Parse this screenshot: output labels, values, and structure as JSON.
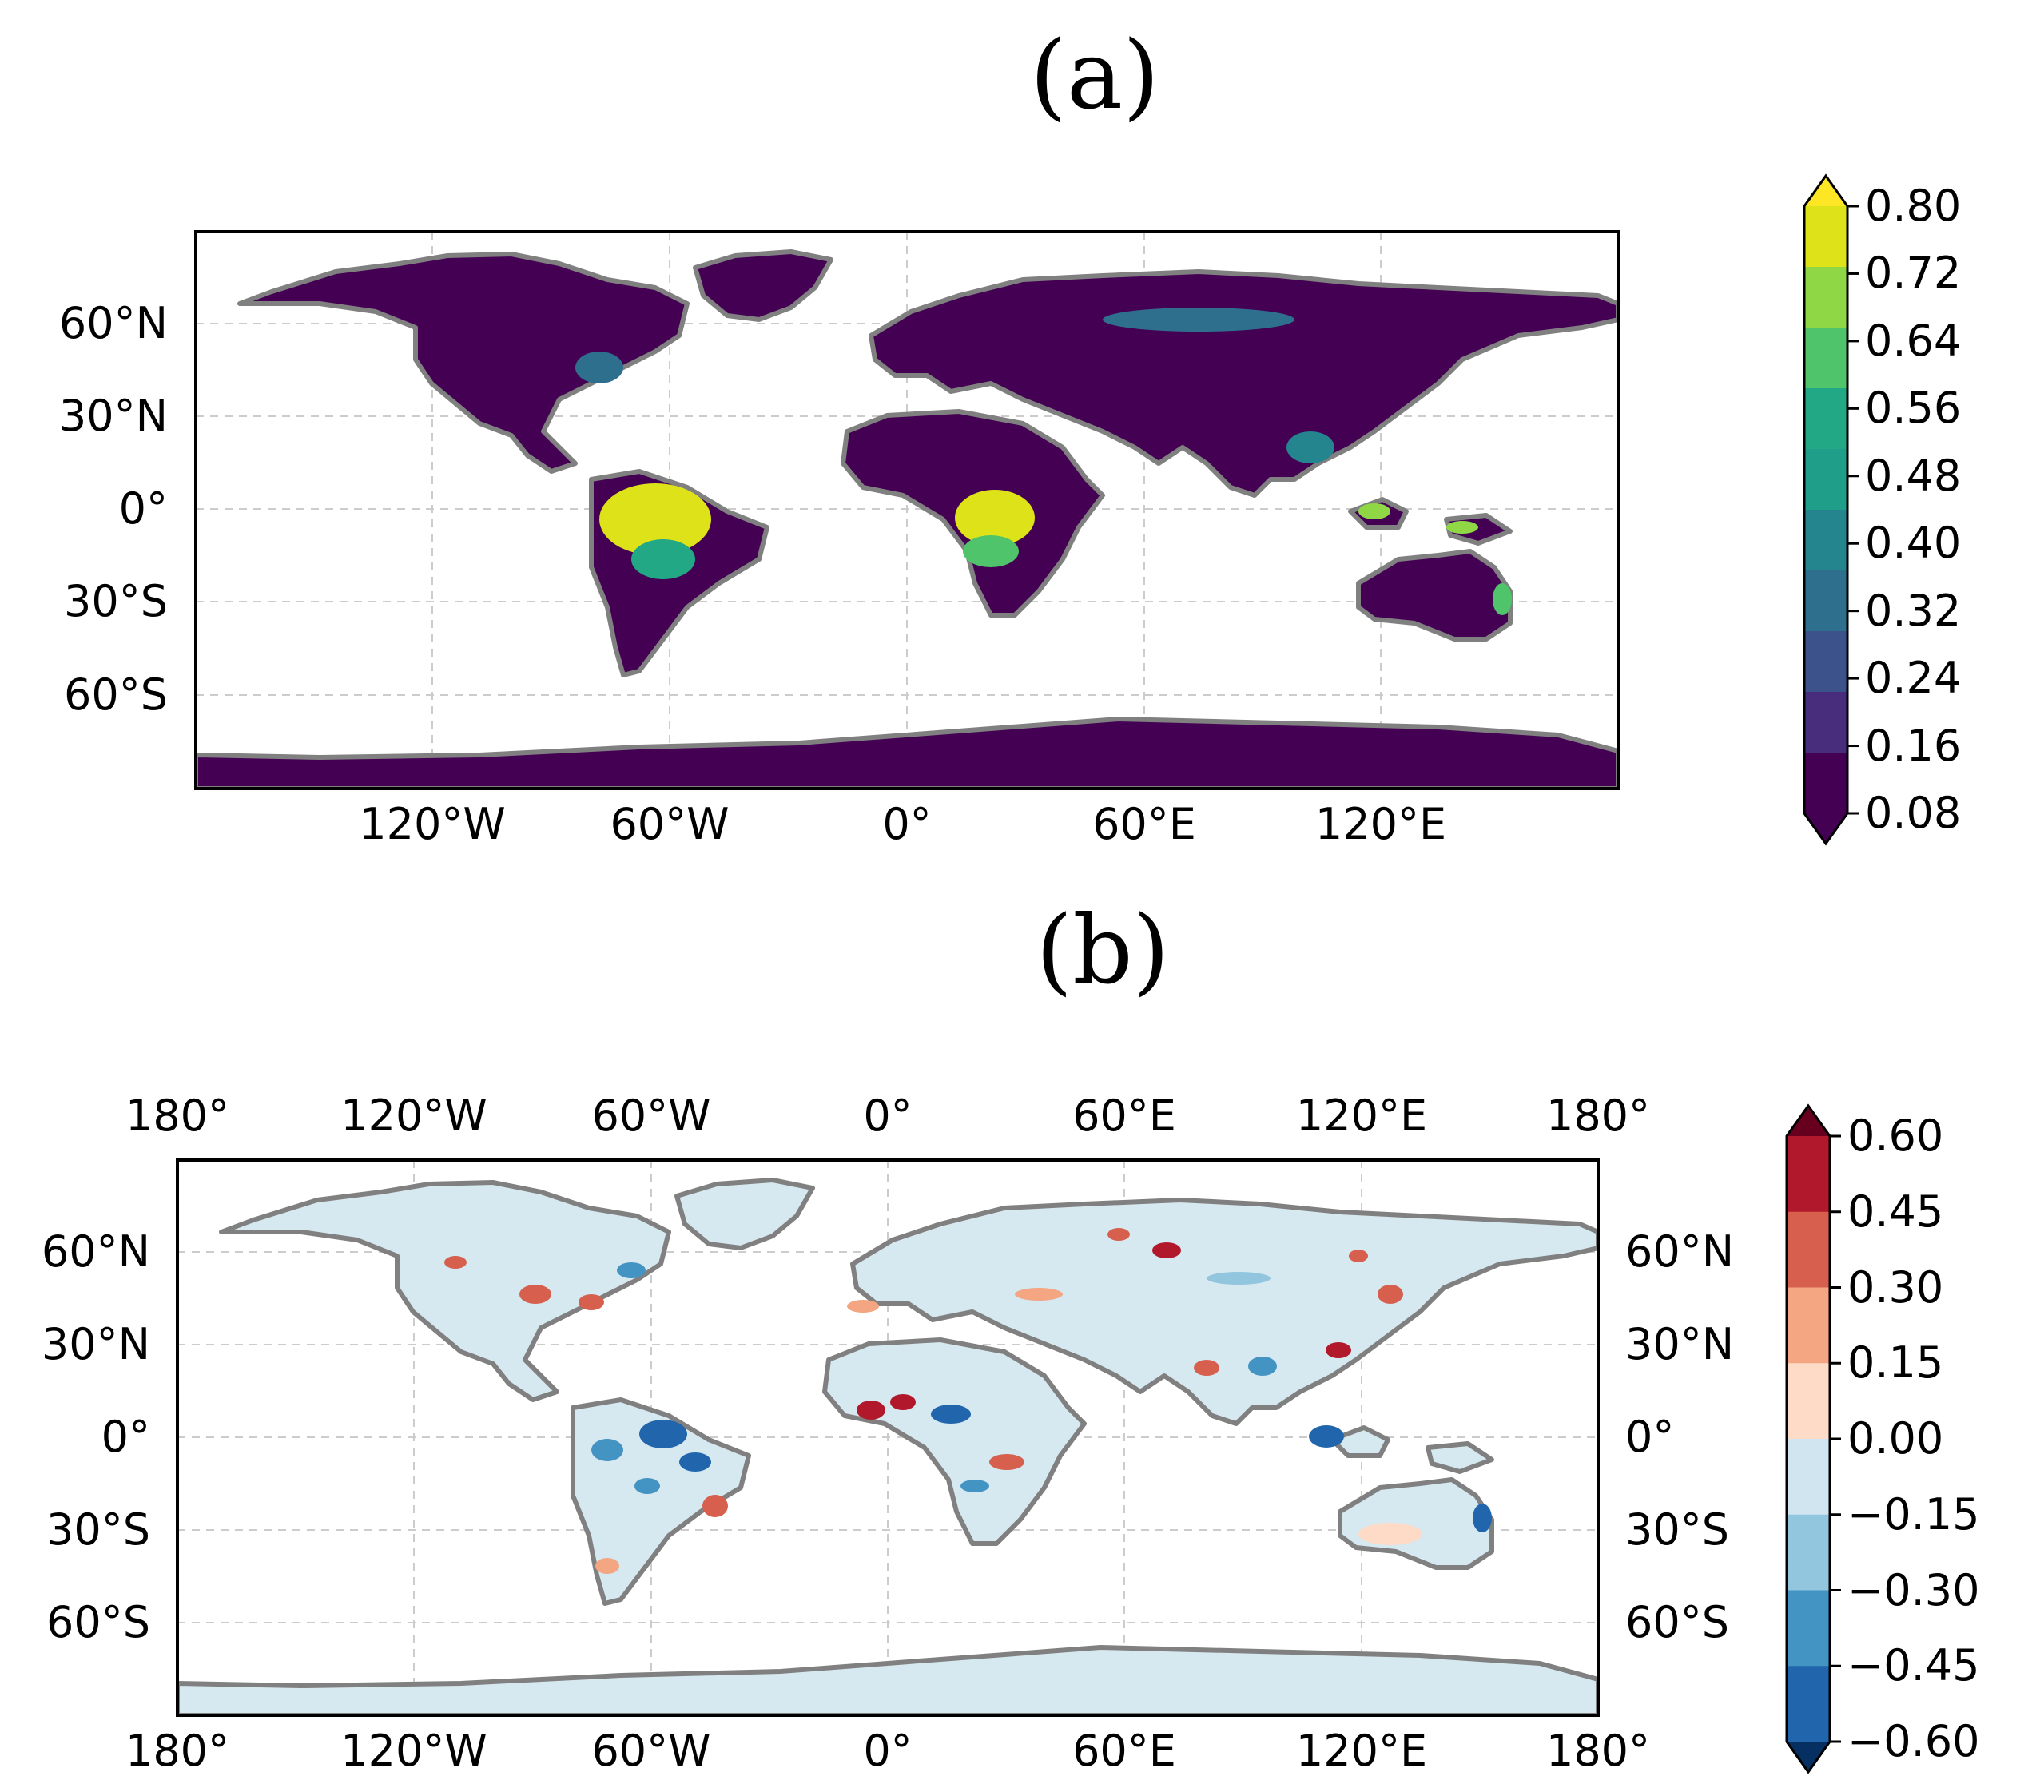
{
  "panels": {
    "a": {
      "label": "(a)",
      "x_ticks": [
        "120°W",
        "60°W",
        "0°",
        "60°E",
        "120°E"
      ],
      "y_ticks": [
        "60°N",
        "30°N",
        "0°",
        "30°S",
        "60°S"
      ],
      "colorbar": {
        "ticks": [
          "0.80",
          "0.72",
          "0.64",
          "0.56",
          "0.48",
          "0.40",
          "0.32",
          "0.24",
          "0.16",
          "0.08"
        ],
        "colors": [
          "#dde318",
          "#8fd744",
          "#50c46a",
          "#22a884",
          "#1f9e89",
          "#25858e",
          "#2e6f8e",
          "#3b528b",
          "#472d7b",
          "#440154"
        ],
        "extend_top_color": "#fde725",
        "extend_bottom_color": "#440154"
      }
    },
    "b": {
      "label": "(b)",
      "x_ticks_top": [
        "180°",
        "120°W",
        "60°W",
        "0°",
        "60°E",
        "120°E",
        "180°"
      ],
      "x_ticks_bottom": [
        "180°",
        "120°W",
        "60°W",
        "0°",
        "60°E",
        "120°E",
        "180°"
      ],
      "y_ticks_left": [
        "60°N",
        "30°N",
        "0°",
        "30°S",
        "60°S"
      ],
      "y_ticks_right": [
        "60°N",
        "30°N",
        "0°",
        "30°S",
        "60°S"
      ],
      "colorbar": {
        "ticks": [
          "0.60",
          "0.45",
          "0.30",
          "0.15",
          "0.00",
          "−0.15",
          "−0.30",
          "−0.45",
          "−0.60"
        ],
        "colors": [
          "#b2182b",
          "#d6604d",
          "#f4a582",
          "#fddbc7",
          "#d1e5f0",
          "#92c5de",
          "#4393c3",
          "#2166ac"
        ],
        "extend_top_color": "#67001f",
        "extend_bottom_color": "#053061"
      }
    }
  },
  "colors": {
    "land_a": "#440154",
    "land_b": "#d6e8f0",
    "coast": "#808080",
    "grid": "#cccccc"
  }
}
